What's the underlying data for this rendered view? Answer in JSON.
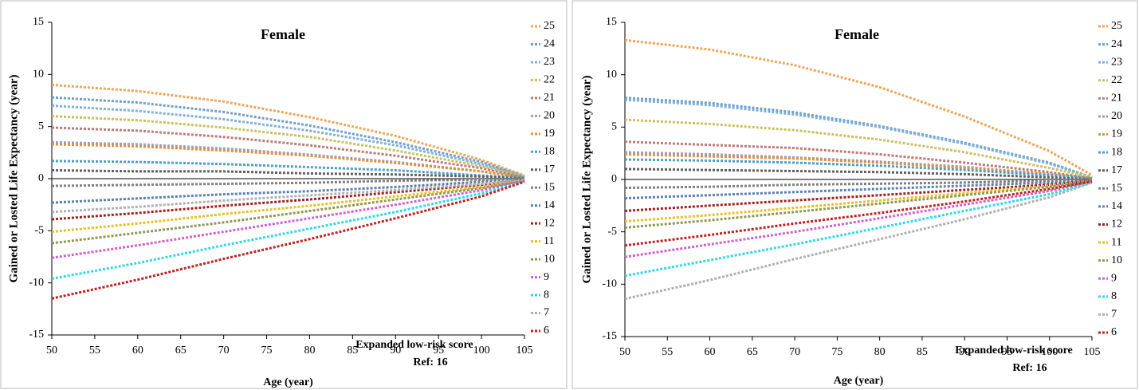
{
  "chart_data": [
    {
      "type": "line",
      "title": "Female",
      "y_label": "Gained or Losted Life Expectancy (year)",
      "x_label": "Age (year)",
      "annotations": [
        "Expanded low-risk score",
        "Ref: 16"
      ],
      "x": [
        50,
        60,
        70,
        80,
        90,
        100,
        105
      ],
      "xlim": [
        50,
        105
      ],
      "xticks": [
        50,
        55,
        60,
        65,
        70,
        75,
        80,
        85,
        90,
        95,
        100,
        105
      ],
      "ylim": [
        -15,
        15
      ],
      "yticks": [
        -15,
        -10,
        -5,
        0,
        5,
        10,
        15
      ],
      "series": [
        {
          "name": "25",
          "color": "#f0a55a",
          "values": [
            9,
            8.4,
            7.4,
            5.9,
            4.1,
            1.8,
            0.3
          ]
        },
        {
          "name": "24",
          "color": "#6f9fc8",
          "values": [
            7.8,
            7.3,
            6.4,
            5.1,
            3.5,
            1.6,
            0.2
          ]
        },
        {
          "name": "23",
          "color": "#7fb0d8",
          "values": [
            7,
            6.5,
            5.7,
            4.6,
            3.2,
            1.4,
            0.2
          ]
        },
        {
          "name": "22",
          "color": "#c8c060",
          "values": [
            6,
            5.6,
            4.9,
            4.0,
            2.7,
            1.2,
            0.2
          ]
        },
        {
          "name": "21",
          "color": "#c07878",
          "values": [
            4.9,
            4.6,
            4.0,
            3.2,
            2.2,
            1.0,
            0.1
          ]
        },
        {
          "name": "20",
          "color": "#9a9fc0",
          "values": [
            3.5,
            3.3,
            2.9,
            2.3,
            1.6,
            0.7,
            0.1
          ]
        },
        {
          "name": "19",
          "color": "#e09040",
          "values": [
            3.3,
            3.1,
            2.7,
            2.2,
            1.5,
            0.7,
            0.1
          ]
        },
        {
          "name": "18",
          "color": "#4aa0c8",
          "values": [
            1.7,
            1.6,
            1.4,
            1.1,
            0.8,
            0.3,
            0.1
          ]
        },
        {
          "name": "17",
          "color": "#606060",
          "values": [
            0.8,
            0.7,
            0.7,
            0.5,
            0.4,
            0.2,
            0
          ]
        },
        {
          "name": "15",
          "color": "#808080",
          "values": [
            -0.7,
            -0.6,
            -0.5,
            -0.4,
            -0.2,
            -0.1,
            0
          ]
        },
        {
          "name": "14",
          "color": "#5a7fb0",
          "values": [
            -2.3,
            -1.9,
            -1.5,
            -1.2,
            -0.8,
            -0.3,
            -0.1
          ]
        },
        {
          "name": "12",
          "color": "#a02020",
          "values": [
            -3.9,
            -3.3,
            -2.6,
            -2.0,
            -1.3,
            -0.6,
            -0.1
          ]
        },
        {
          "name": "11",
          "color": "#e8c020",
          "values": [
            -5.1,
            -4.3,
            -3.4,
            -2.6,
            -1.7,
            -0.8,
            -0.2
          ]
        },
        {
          "name": "10",
          "color": "#909850",
          "values": [
            -6.2,
            -5.2,
            -4.2,
            -3.1,
            -2.0,
            -0.9,
            -0.2
          ]
        },
        {
          "name": "9",
          "color": "#d060d0",
          "values": [
            -7.6,
            -6.4,
            -5.1,
            -3.8,
            -2.5,
            -1.1,
            -0.2
          ]
        },
        {
          "name": "8",
          "color": "#30d8e8",
          "values": [
            -9.6,
            -8.1,
            -6.4,
            -4.8,
            -3.2,
            -1.4,
            -0.3
          ]
        },
        {
          "name": "7",
          "color": "#b0b0b0",
          "values": [
            -3.2,
            -2.7,
            -2.1,
            -1.6,
            -1.1,
            -0.5,
            -0.1
          ]
        },
        {
          "name": "6",
          "color": "#c02020",
          "values": [
            -11.5,
            -9.7,
            -7.7,
            -5.8,
            -3.8,
            -1.7,
            -0.3
          ]
        }
      ]
    },
    {
      "type": "line",
      "title": "Female",
      "y_label": "Gained or Losted Life Expectancy (year)",
      "x_label": "Age (year)",
      "annotations": [
        "Expanded low-risk score",
        "Ref: 16"
      ],
      "x": [
        50,
        60,
        70,
        80,
        90,
        100,
        105
      ],
      "xlim": [
        50,
        105
      ],
      "xticks": [
        50,
        55,
        60,
        65,
        70,
        75,
        80,
        85,
        90,
        95,
        100,
        105
      ],
      "ylim": [
        -15,
        15
      ],
      "yticks": [
        -15,
        -10,
        -5,
        0,
        5,
        10,
        15
      ],
      "series": [
        {
          "name": "25",
          "color": "#f0a55a",
          "values": [
            13.3,
            12.4,
            10.9,
            8.8,
            6.0,
            2.7,
            0.4
          ]
        },
        {
          "name": "24",
          "color": "#6f9fc8",
          "values": [
            7.8,
            7.3,
            6.4,
            5.1,
            3.5,
            1.6,
            0.2
          ]
        },
        {
          "name": "23",
          "color": "#7fb0d8",
          "values": [
            7.6,
            7.1,
            6.2,
            5.0,
            3.4,
            1.5,
            0.2
          ]
        },
        {
          "name": "22",
          "color": "#c8c060",
          "values": [
            5.7,
            5.3,
            4.7,
            3.8,
            2.6,
            1.1,
            0.2
          ]
        },
        {
          "name": "21",
          "color": "#c07878",
          "values": [
            3.6,
            3.3,
            3.0,
            2.4,
            1.6,
            0.7,
            0.1
          ]
        },
        {
          "name": "20",
          "color": "#9a9fc0",
          "values": [
            2.6,
            2.4,
            2.1,
            1.7,
            1.2,
            0.5,
            0.1
          ]
        },
        {
          "name": "19",
          "color": "#e09040",
          "values": [
            2.4,
            2.2,
            2.0,
            1.6,
            1.1,
            0.5,
            0.1
          ]
        },
        {
          "name": "18",
          "color": "#4aa0c8",
          "values": [
            1.9,
            1.8,
            1.6,
            1.3,
            0.9,
            0.4,
            0.1
          ]
        },
        {
          "name": "17",
          "color": "#606060",
          "values": [
            1,
            0.9,
            0.8,
            0.7,
            0.5,
            0.2,
            0
          ]
        },
        {
          "name": "15",
          "color": "#808080",
          "values": [
            -0.8,
            -0.7,
            -0.5,
            -0.4,
            -0.3,
            -0.1,
            0
          ]
        },
        {
          "name": "14",
          "color": "#5a7fb0",
          "values": [
            -1.8,
            -1.5,
            -1.2,
            -0.9,
            -0.6,
            -0.3,
            -0.1
          ]
        },
        {
          "name": "12",
          "color": "#a02020",
          "values": [
            -3,
            -2.5,
            -2,
            -1.5,
            -1,
            -0.5,
            -0.1
          ]
        },
        {
          "name": "11",
          "color": "#e8c020",
          "values": [
            -4,
            -3.4,
            -2.7,
            -2,
            -1.3,
            -0.6,
            -0.1
          ]
        },
        {
          "name": "10",
          "color": "#909850",
          "values": [
            -4.6,
            -3.9,
            -3.1,
            -2.3,
            -1.5,
            -0.7,
            -0.1
          ]
        },
        {
          "name": "9",
          "color": "#d060d0",
          "values": [
            -7.4,
            -6.2,
            -5,
            -3.7,
            -2.4,
            -1.1,
            -0.2
          ]
        },
        {
          "name": "8",
          "color": "#30d8e8",
          "values": [
            -9.2,
            -7.7,
            -6.2,
            -4.6,
            -3,
            -1.4,
            -0.3
          ]
        },
        {
          "name": "7",
          "color": "#b0b0b0",
          "values": [
            -11.4,
            -9.6,
            -7.6,
            -5.7,
            -3.8,
            -1.7,
            -0.3
          ]
        },
        {
          "name": "6",
          "color": "#c02020",
          "values": [
            -6.3,
            -5.3,
            -4.2,
            -3.2,
            -2.1,
            -0.9,
            -0.2
          ]
        }
      ]
    }
  ]
}
